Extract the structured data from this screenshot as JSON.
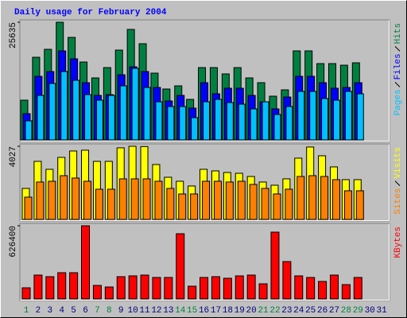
{
  "chart_data": [
    {
      "type": "bar",
      "title": "Daily usage for February 2004",
      "ylim": [
        0,
        25635
      ],
      "yticks": [
        25635
      ],
      "series": [
        {
          "name": "Hits",
          "color": "#008040",
          "values": [
            8660,
            18010,
            19740,
            25635,
            22340,
            16970,
            13510,
            15760,
            19570,
            24080,
            20960,
            14550,
            11090,
            11780,
            8830,
            15760,
            15760,
            14380,
            15760,
            13510,
            12470,
            9530,
            10910,
            19400,
            19400,
            16630,
            16630,
            16280,
            16800,
            null,
            null
          ]
        },
        {
          "name": "Files",
          "color": "#0000ff",
          "values": [
            5720,
            13860,
            14900,
            19400,
            17670,
            12470,
            9700,
            9870,
            14200,
            15930,
            14900,
            11430,
            8490,
            9700,
            6930,
            12470,
            10050,
            11260,
            11260,
            9700,
            8310,
            6760,
            9350,
            13860,
            13860,
            12470,
            11260,
            11430,
            12470,
            null,
            null
          ]
        },
        {
          "name": "Pages",
          "color": "#00c0ff",
          "values": [
            4160,
            9700,
            12300,
            14900,
            12990,
            9870,
            8660,
            9700,
            11780,
            15590,
            11430,
            8310,
            7270,
            7270,
            4850,
            8310,
            8830,
            8140,
            7790,
            6760,
            8310,
            5540,
            7270,
            10570,
            10570,
            9010,
            8660,
            10570,
            10050,
            null,
            null
          ]
        }
      ]
    },
    {
      "type": "bar",
      "ylim": [
        0,
        4027
      ],
      "yticks": [
        4027
      ],
      "series": [
        {
          "name": "Visits",
          "color": "#ffff00",
          "values": [
            1708,
            3197,
            2759,
            3416,
            3767,
            3811,
            3197,
            3197,
            3942,
            4027,
            4010,
            3022,
            2321,
            2102,
            1840,
            2759,
            2672,
            2584,
            2540,
            2365,
            2059,
            1883,
            2234,
            3373,
            3986,
            3504,
            2891,
            2190,
            2190,
            null,
            null
          ]
        },
        {
          "name": "Sites",
          "color": "#ff8000",
          "values": [
            1226,
            2059,
            2102,
            2409,
            2278,
            2102,
            1664,
            1664,
            2234,
            2234,
            2234,
            2102,
            1708,
            1402,
            1402,
            2102,
            2102,
            2059,
            2102,
            1927,
            1708,
            1402,
            1664,
            2365,
            2409,
            2365,
            2190,
            1577,
            1577,
            null,
            null
          ]
        }
      ]
    },
    {
      "type": "bar",
      "ylim": [
        0,
        626400
      ],
      "yticks": [
        626400
      ],
      "categories": [
        "1",
        "2",
        "3",
        "4",
        "5",
        "6",
        "7",
        "8",
        "9",
        "10",
        "11",
        "12",
        "13",
        "14",
        "15",
        "16",
        "17",
        "18",
        "19",
        "20",
        "21",
        "22",
        "23",
        "24",
        "25",
        "26",
        "27",
        "28",
        "29",
        "30",
        "31"
      ],
      "category_colors": [
        "#008040",
        "#000080",
        "#000080",
        "#000080",
        "#000080",
        "#000080",
        "#008040",
        "#008040",
        "#000080",
        "#000080",
        "#000080",
        "#000080",
        "#000080",
        "#008040",
        "#008040",
        "#000080",
        "#000080",
        "#000080",
        "#000080",
        "#000080",
        "#008040",
        "#008040",
        "#000080",
        "#000080",
        "#000080",
        "#000080",
        "#000080",
        "#008040",
        "#008040",
        "#000080",
        "#000080"
      ],
      "series": [
        {
          "name": "KBytes",
          "color": "#ff0000",
          "values": [
            95330,
            204270,
            190650,
            224700,
            224700,
            626400,
            115750,
            102140,
            190650,
            197460,
            204270,
            183840,
            183840,
            558340,
            108940,
            183840,
            190650,
            177030,
            197460,
            204270,
            129370,
            571960,
            320020,
            197460,
            183840,
            149800,
            204270,
            122560,
            183840,
            null,
            null
          ]
        }
      ]
    }
  ]
}
